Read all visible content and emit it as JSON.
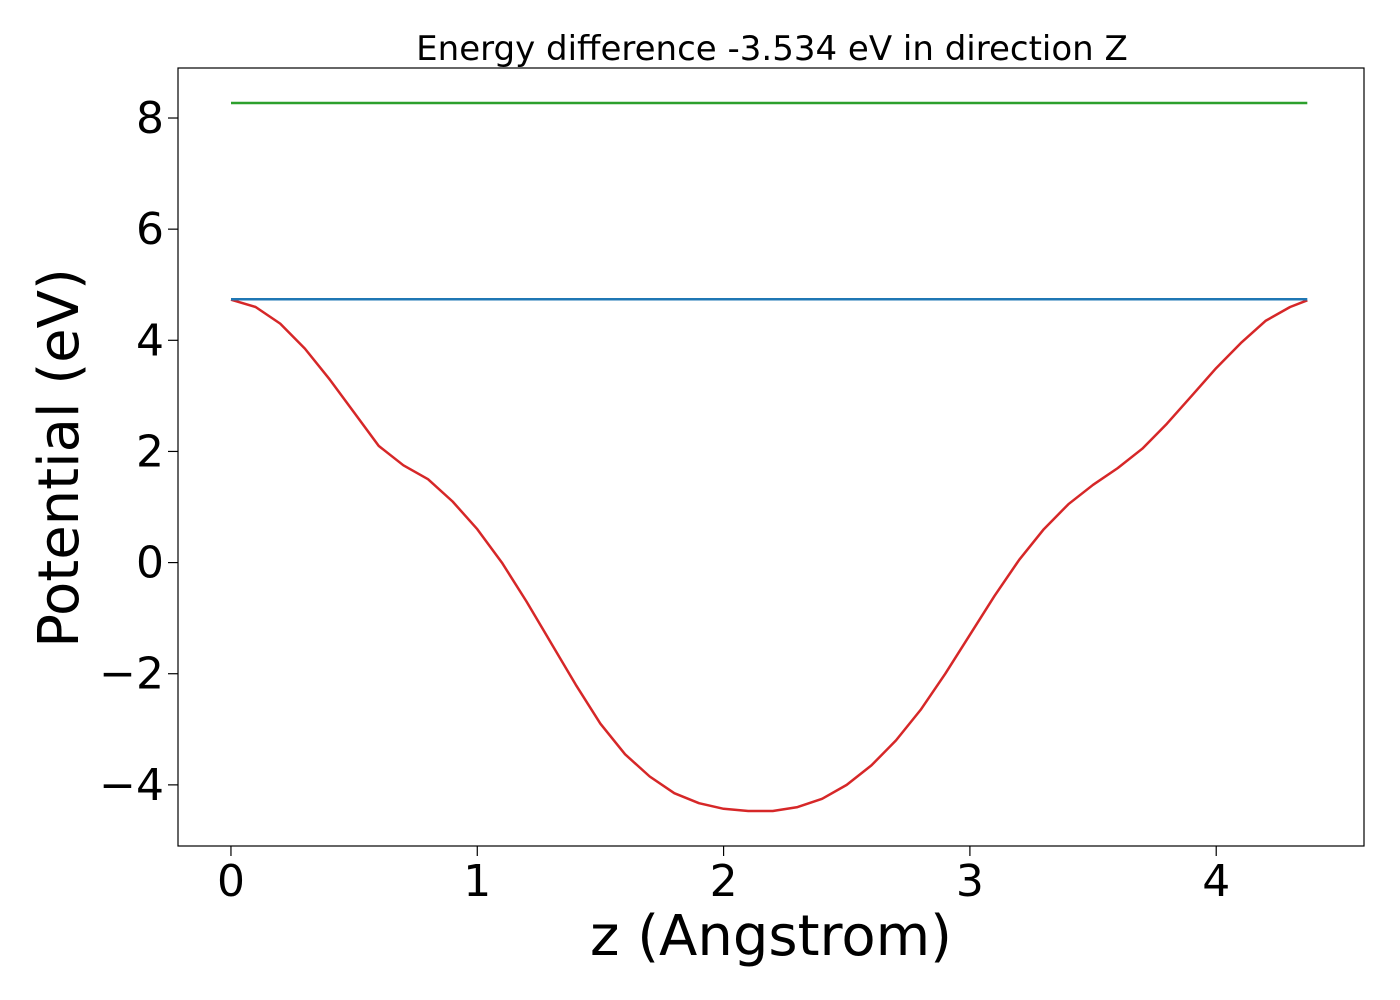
{
  "chart_data": {
    "type": "line",
    "title": "Energy difference -3.534 eV in direction Z",
    "xlabel": "z (Angstrom)",
    "ylabel": "Potential (eV)",
    "xlim": [
      -0.215,
      4.6
    ],
    "ylim": [
      -5.1,
      8.9
    ],
    "xticks": [
      0,
      1,
      2,
      3,
      4
    ],
    "yticks": [
      -4,
      -2,
      0,
      2,
      4,
      6,
      8
    ],
    "grid": false,
    "series": [
      {
        "color": "#d62728",
        "x": [
          0,
          0.1,
          0.2,
          0.3,
          0.4,
          0.5,
          0.6,
          0.7,
          0.8,
          0.9,
          1.0,
          1.1,
          1.2,
          1.3,
          1.4,
          1.5,
          1.6,
          1.7,
          1.8,
          1.9,
          2.0,
          2.1,
          2.2,
          2.3,
          2.4,
          2.5,
          2.6,
          2.7,
          2.8,
          2.9,
          3.0,
          3.1,
          3.2,
          3.3,
          3.4,
          3.5,
          3.6,
          3.7,
          3.8,
          3.9,
          4.0,
          4.1,
          4.2,
          4.3,
          4.37
        ],
        "y": [
          4.73,
          4.6,
          4.3,
          3.85,
          3.3,
          2.7,
          2.1,
          1.75,
          1.5,
          1.1,
          0.6,
          0.0,
          -0.7,
          -1.45,
          -2.2,
          -2.9,
          -3.45,
          -3.85,
          -4.15,
          -4.33,
          -4.43,
          -4.47,
          -4.47,
          -4.4,
          -4.25,
          -4.0,
          -3.65,
          -3.2,
          -2.65,
          -2.0,
          -1.3,
          -0.6,
          0.05,
          0.6,
          1.05,
          1.4,
          1.7,
          2.05,
          2.5,
          3.0,
          3.5,
          3.95,
          4.35,
          4.6,
          4.72
        ]
      },
      {
        "color": "#1f77b4",
        "x": [
          0,
          4.37
        ],
        "y": [
          4.74,
          4.74
        ]
      },
      {
        "color": "#2ca02c",
        "x": [
          0,
          4.37
        ],
        "y": [
          8.27,
          8.27
        ]
      }
    ]
  }
}
